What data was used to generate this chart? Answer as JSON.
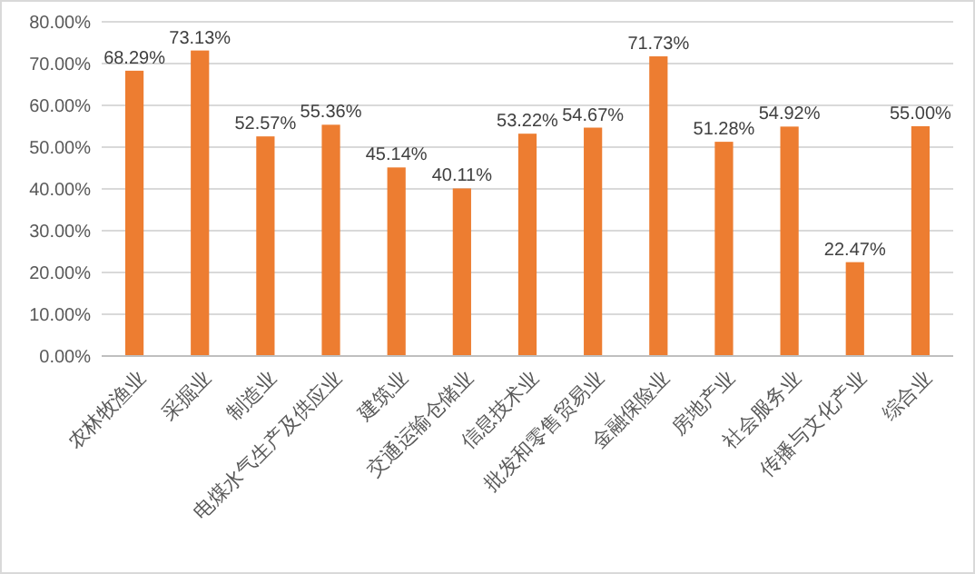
{
  "chart_data": {
    "type": "bar",
    "categories": [
      "农林牧渔业",
      "采掘业",
      "制造业",
      "电煤水气生产及供应业",
      "建筑业",
      "交通运输仓储业",
      "信息技术业",
      "批发和零售贸易业",
      "金融保险业",
      "房地产业",
      "社会服务业",
      "传播与文化产业",
      "综合业"
    ],
    "values": [
      68.29,
      73.13,
      52.57,
      55.36,
      45.14,
      40.11,
      53.22,
      54.67,
      71.73,
      51.28,
      54.92,
      22.47,
      55.0
    ],
    "value_labels": [
      "68.29%",
      "73.13%",
      "52.57%",
      "55.36%",
      "45.14%",
      "40.11%",
      "53.22%",
      "54.67%",
      "71.73%",
      "51.28%",
      "54.92%",
      "22.47%",
      "55.00%"
    ],
    "color": "#ed7d31",
    "ylim": [
      0,
      80
    ],
    "yticks": [
      {
        "value": 0,
        "label": "0.00%"
      },
      {
        "value": 10,
        "label": "10.00%"
      },
      {
        "value": 20,
        "label": "20.00%"
      },
      {
        "value": 30,
        "label": "30.00%"
      },
      {
        "value": 40,
        "label": "40.00%"
      },
      {
        "value": 50,
        "label": "50.00%"
      },
      {
        "value": 60,
        "label": "60.00%"
      },
      {
        "value": 70,
        "label": "70.00%"
      },
      {
        "value": 80,
        "label": "80.00%"
      }
    ],
    "grid": "y"
  }
}
